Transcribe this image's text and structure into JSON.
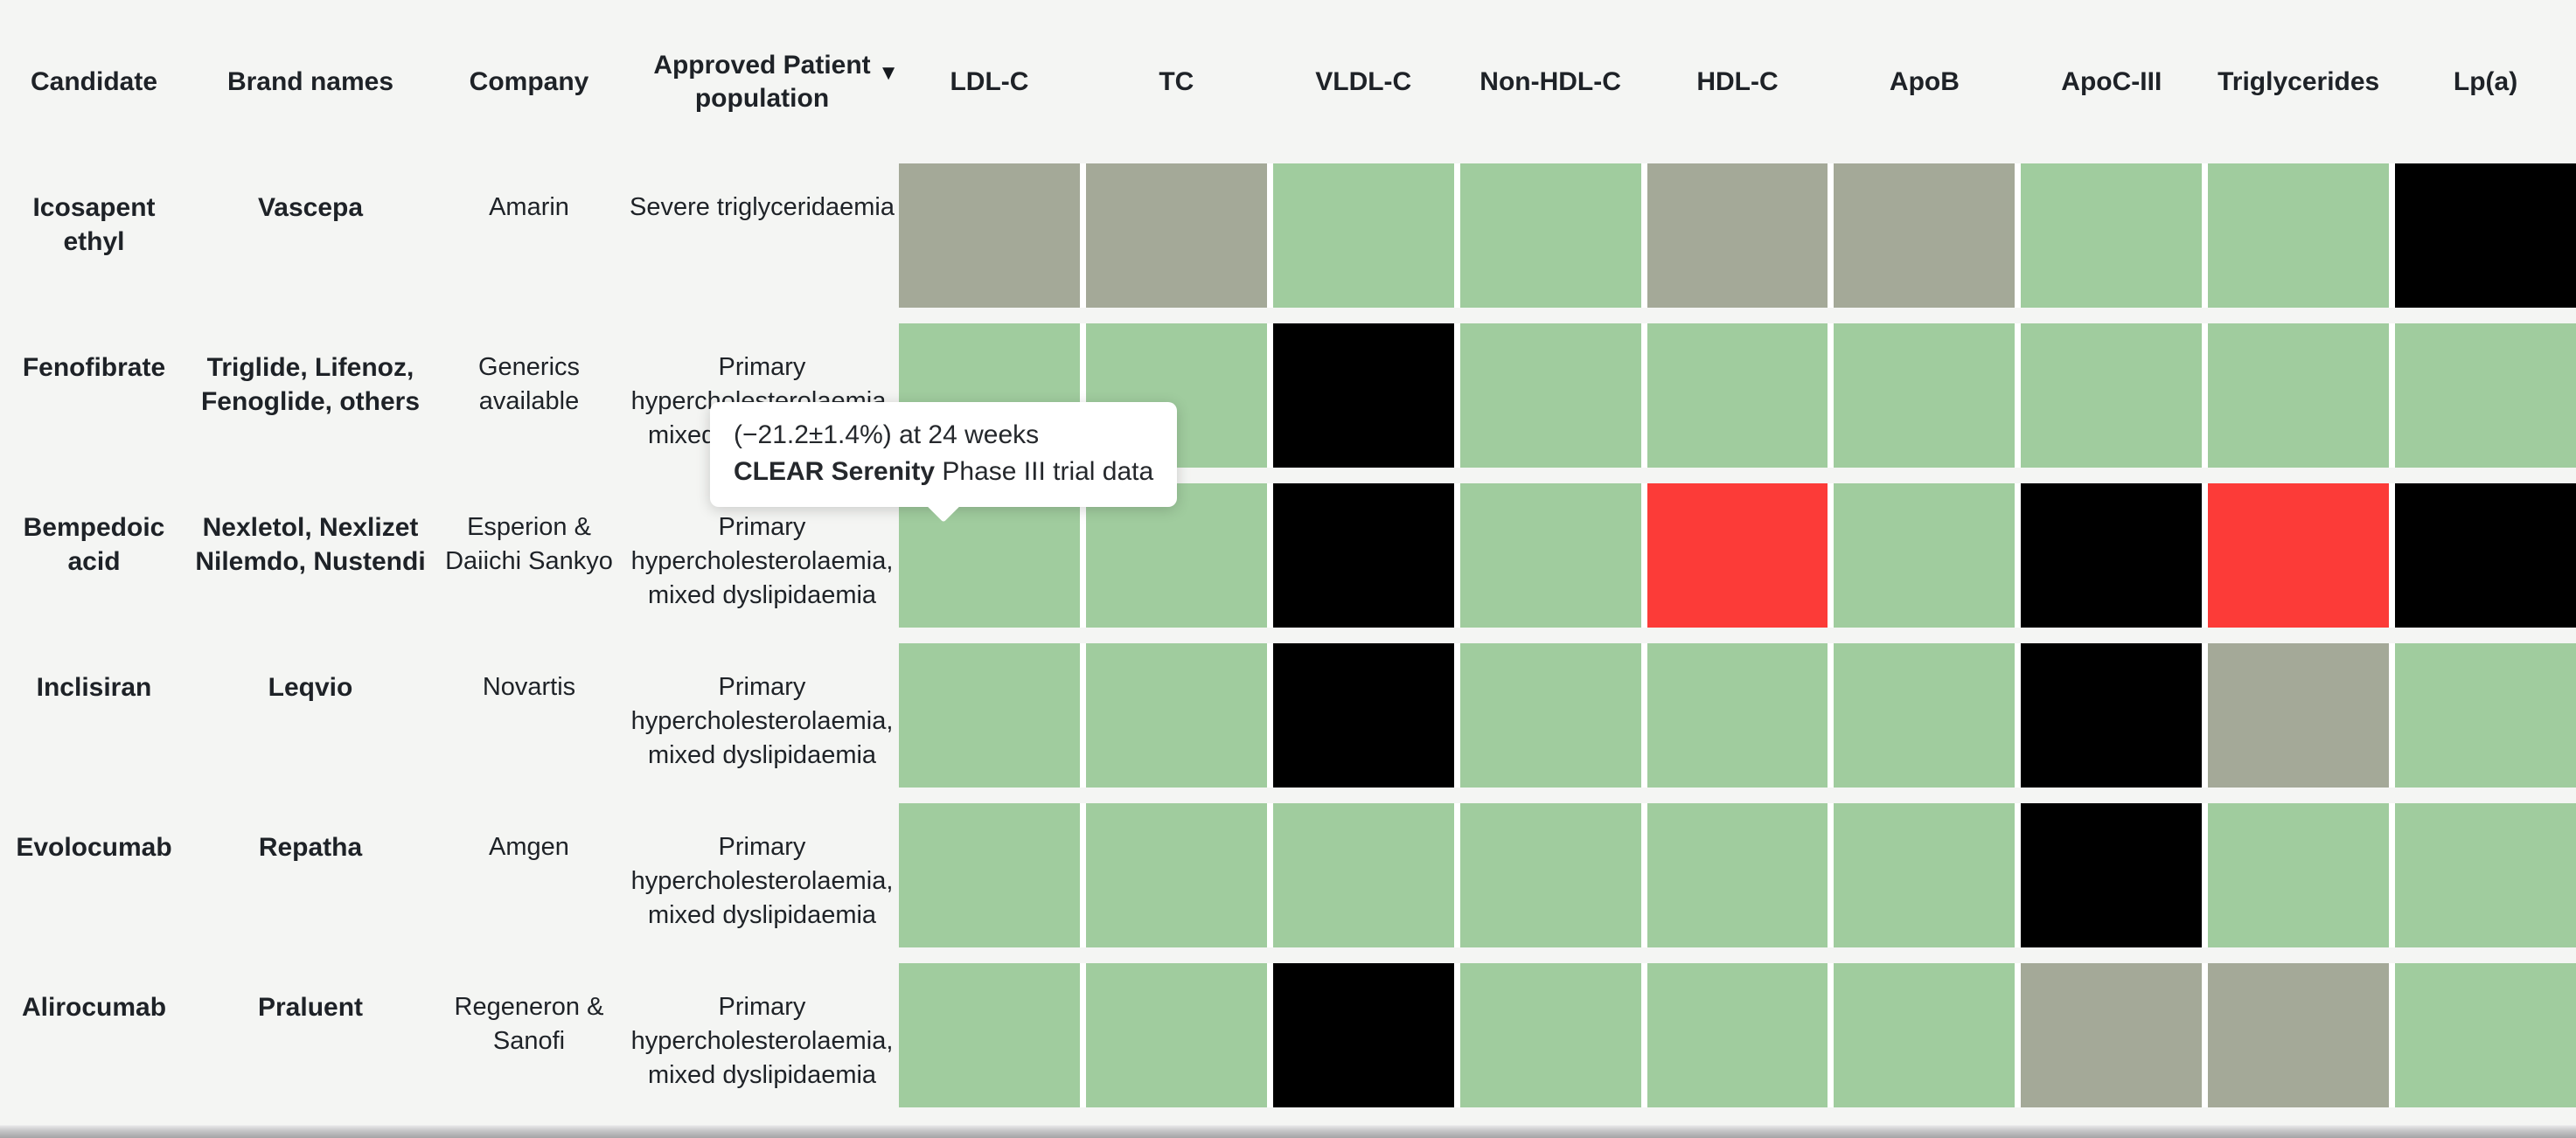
{
  "palette": {
    "background": "#f4f5f3",
    "cell_green": "#a0cc9e",
    "cell_gray": "#a4a998",
    "cell_red": "#fc3b38",
    "cell_black": "#000000",
    "cell_gap_white": "#ffffff",
    "tooltip_background": "#ffffff",
    "scrollbar_thumb": "#a4a4a6"
  },
  "table": {
    "text_columns": [
      "Candidate",
      "Brand names",
      "Company",
      "Approved Patient population"
    ],
    "sort_indicator": "▼",
    "sorted_column": "Approved Patient population",
    "marker_columns": [
      "LDL-C",
      "TC",
      "VLDL-C",
      "Non-HDL-C",
      "HDL-C",
      "ApoB",
      "ApoC-III",
      "Triglycerides",
      "Lp(a)"
    ],
    "rows": [
      {
        "candidate": "Icosapent ethyl",
        "brand_names": "Vascepa",
        "company": "Amarin",
        "population": "Severe triglyceridaemia",
        "markers": [
          "gray",
          "gray",
          "green",
          "green",
          "gray",
          "gray",
          "green",
          "green",
          "black"
        ]
      },
      {
        "candidate": "Fenofibrate",
        "brand_names": "Triglide, Lifenoz, Fenoglide, others",
        "company": "Generics available",
        "population": "Primary hypercholesterolaemia, mixed dyslipidaemia",
        "markers": [
          "green",
          "green",
          "black",
          "green",
          "green",
          "green",
          "green",
          "green",
          "green"
        ]
      },
      {
        "candidate": "Bempedoic acid",
        "brand_names": "Nexletol, Nexlizet Nilemdo, Nustendi",
        "company": "Esperion & Daiichi Sankyo",
        "population": "Primary hypercholesterolaemia, mixed dyslipidaemia",
        "markers": [
          "green",
          "green",
          "black",
          "green",
          "red",
          "green",
          "black",
          "red",
          "black"
        ]
      },
      {
        "candidate": "Inclisiran",
        "brand_names": "Leqvio",
        "company": "Novartis",
        "population": "Primary hypercholesterolaemia, mixed dyslipidaemia",
        "markers": [
          "green",
          "green",
          "black",
          "green",
          "green",
          "green",
          "black",
          "gray",
          "green"
        ]
      },
      {
        "candidate": "Evolocumab",
        "brand_names": "Repatha",
        "company": "Amgen",
        "population": "Primary hypercholesterolaemia, mixed dyslipidaemia",
        "markers": [
          "green",
          "green",
          "green",
          "green",
          "green",
          "green",
          "black",
          "green",
          "green"
        ]
      },
      {
        "candidate": "Alirocumab",
        "brand_names": "Praluent",
        "company": "Regeneron & Sanofi",
        "population": "Primary hypercholesterolaemia, mixed dyslipidaemia",
        "markers": [
          "green",
          "green",
          "black",
          "green",
          "green",
          "green",
          "gray",
          "gray",
          "green"
        ]
      }
    ]
  },
  "tooltip": {
    "line1": "(−21.2±1.4%) at 24 weeks",
    "trial_bold": "CLEAR Serenity",
    "trial_rest": " Phase III trial data"
  }
}
